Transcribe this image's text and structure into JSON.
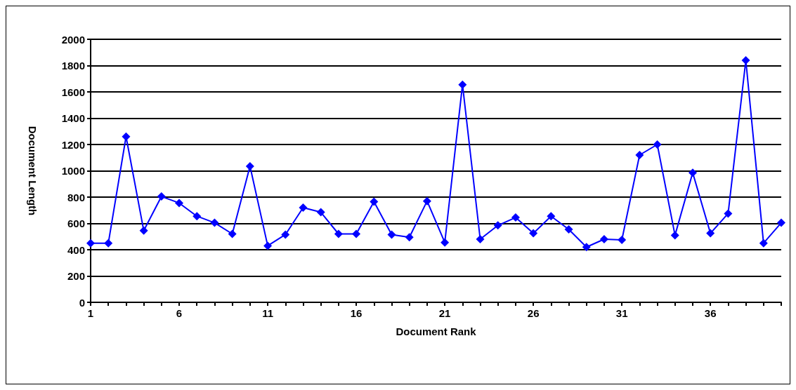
{
  "chart_data": {
    "type": "line",
    "xlabel": "Document Rank",
    "ylabel": "Document Length",
    "categories": [
      "1",
      null,
      null,
      null,
      null,
      "6",
      null,
      null,
      null,
      null,
      "11",
      null,
      null,
      null,
      null,
      "16",
      null,
      null,
      null,
      null,
      "21",
      null,
      null,
      null,
      null,
      "26",
      null,
      null,
      null,
      null,
      "31",
      null,
      null,
      null,
      null,
      "36",
      null,
      null,
      null,
      null
    ],
    "series": [
      {
        "color": "#0000ff",
        "values": [
          450,
          450,
          1260,
          545,
          805,
          755,
          655,
          605,
          520,
          1035,
          430,
          515,
          720,
          685,
          520,
          520,
          765,
          515,
          495,
          770,
          455,
          1655,
          480,
          585,
          645,
          525,
          655,
          555,
          420,
          480,
          475,
          1120,
          1200,
          510,
          985,
          525,
          675,
          1840,
          450,
          605
        ]
      }
    ],
    "ylim": [
      0,
      2000
    ],
    "yticks": [
      0,
      200,
      400,
      600,
      800,
      1000,
      1200,
      1400,
      1600,
      1800,
      2000
    ],
    "grid": "y",
    "marker": "diamond",
    "line_style": "solid"
  }
}
